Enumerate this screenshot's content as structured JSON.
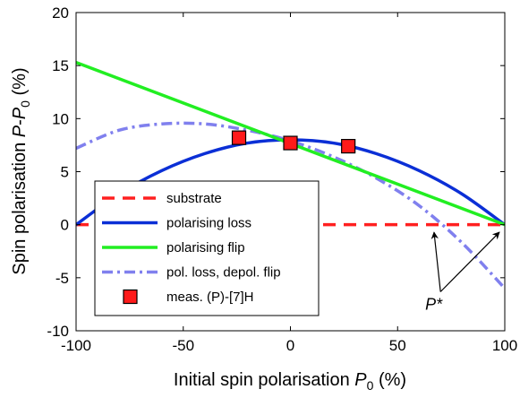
{
  "chart_data": {
    "type": "line",
    "title": "",
    "xlabel": "Initial spin polarisation P_0 (%)",
    "ylabel": "Spin polarisation P-P_0 (%)",
    "xlim": [
      -100,
      100
    ],
    "ylim": [
      -10,
      20
    ],
    "xticks": [
      -100,
      -50,
      0,
      50,
      100
    ],
    "yticks": [
      -10,
      -5,
      0,
      5,
      10,
      15,
      20
    ],
    "xtick_labels": [
      "-100",
      "-50",
      "0",
      "50",
      "100"
    ],
    "ytick_labels": [
      "-10",
      "-5",
      "0",
      "5",
      "10",
      "15",
      "20"
    ],
    "grid": false,
    "legend_position": "bottom-left",
    "series": [
      {
        "name": "substrate",
        "style": "dashed",
        "color": "#ff2020",
        "x": [
          -100,
          100
        ],
        "y": [
          0,
          0
        ]
      },
      {
        "name": "polarising loss",
        "style": "solid",
        "color": "#0b2fd6",
        "x": [
          -100,
          -80,
          -60,
          -40,
          -20,
          0,
          20,
          40,
          60,
          80,
          100
        ],
        "y": [
          0,
          2.9,
          5.1,
          6.7,
          7.7,
          8.0,
          7.7,
          6.7,
          5.1,
          2.9,
          0
        ]
      },
      {
        "name": "polarising flip",
        "style": "solid",
        "color": "#22ee22",
        "x": [
          -100,
          100
        ],
        "y": [
          15.3,
          0
        ]
      },
      {
        "name": "pol. loss, depol. flip",
        "style": "dash-dot",
        "color": "#8080ee",
        "x": [
          -100,
          -80,
          -60,
          -40,
          -20,
          0,
          20,
          40,
          60,
          80,
          100
        ],
        "y": [
          7.2,
          8.9,
          9.5,
          9.5,
          8.9,
          7.9,
          6.4,
          4.4,
          1.8,
          -1.7,
          -6.0
        ]
      },
      {
        "name": "meas. (P)-[7]H",
        "style": "marker",
        "color": "#ff1a1a",
        "x": [
          -24,
          0,
          27
        ],
        "y": [
          8.2,
          7.7,
          7.4
        ]
      }
    ],
    "annotations": [
      {
        "text": "P*",
        "x": 65,
        "y": -7,
        "arrows_to": [
          [
            67,
            -0.2
          ],
          [
            100,
            -0.2
          ]
        ]
      }
    ]
  }
}
